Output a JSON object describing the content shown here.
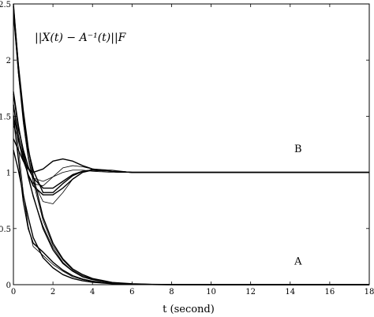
{
  "chart_data": {
    "type": "line",
    "title": "||X(t) − A⁻¹(t)||F",
    "xlabel": "t (second)",
    "ylabel": "",
    "xlim": [
      0,
      18
    ],
    "ylim": [
      0,
      2.5
    ],
    "x_ticks": [
      0,
      2,
      4,
      6,
      8,
      10,
      12,
      14,
      16,
      18
    ],
    "y_ticks": [
      0,
      0.5,
      1,
      1.5,
      2,
      2.5
    ],
    "grid": false,
    "legend": "none",
    "annotations": [
      {
        "text": "B",
        "x": 14.4,
        "y": 1.18
      },
      {
        "text": "A",
        "x": 14.4,
        "y": 0.18
      }
    ],
    "groups": [
      {
        "label": "A",
        "description": "trajectories converging to 0",
        "series": [
          {
            "x": [
              0,
              0.25,
              0.5,
              0.75,
              1,
              1.5,
              2,
              2.5,
              3,
              3.5,
              4,
              5,
              6,
              7,
              8,
              10,
              12,
              14,
              16,
              18
            ],
            "y": [
              2.48,
              1.96,
              1.55,
              1.22,
              0.97,
              0.6,
              0.37,
              0.23,
              0.14,
              0.09,
              0.055,
              0.02,
              0.008,
              0.003,
              0.001,
              0,
              0,
              0,
              0,
              0
            ]
          },
          {
            "x": [
              0,
              0.25,
              0.5,
              0.75,
              1,
              1.5,
              2,
              2.5,
              3,
              3.5,
              4,
              5,
              6,
              7,
              8,
              10,
              12,
              14,
              16,
              18
            ],
            "y": [
              2.4,
              1.88,
              1.48,
              1.16,
              0.92,
              0.57,
              0.35,
              0.22,
              0.13,
              0.08,
              0.05,
              0.02,
              0.007,
              0.003,
              0.001,
              0,
              0,
              0,
              0,
              0
            ]
          },
          {
            "x": [
              0,
              0.25,
              0.5,
              0.75,
              1,
              1.5,
              2,
              2.5,
              3,
              3.5,
              4,
              5,
              6,
              7,
              8,
              10,
              12,
              14,
              16,
              18
            ],
            "y": [
              1.72,
              1.42,
              1.17,
              0.96,
              0.79,
              0.5,
              0.31,
              0.19,
              0.12,
              0.07,
              0.045,
              0.017,
              0.006,
              0.002,
              0.001,
              0,
              0,
              0,
              0,
              0
            ]
          },
          {
            "x": [
              0,
              0.25,
              0.5,
              0.75,
              1,
              1.5,
              2,
              2.5,
              3,
              3.5,
              4,
              5,
              6,
              7,
              8,
              10,
              12,
              14,
              16,
              18
            ],
            "y": [
              1.45,
              1.38,
              1.2,
              0.98,
              0.78,
              0.52,
              0.33,
              0.2,
              0.12,
              0.07,
              0.045,
              0.017,
              0.006,
              0.002,
              0.001,
              0,
              0,
              0,
              0,
              0
            ]
          },
          {
            "x": [
              0,
              0.25,
              0.5,
              0.75,
              1,
              1.5,
              2,
              2.5,
              3,
              3.5,
              4,
              5,
              6,
              7,
              8,
              10,
              12,
              14,
              16,
              18
            ],
            "y": [
              1.5,
              1.12,
              0.74,
              0.5,
              0.37,
              0.29,
              0.2,
              0.13,
              0.08,
              0.05,
              0.03,
              0.011,
              0.004,
              0.001,
              0,
              0,
              0,
              0,
              0,
              0
            ]
          },
          {
            "x": [
              0,
              0.25,
              0.5,
              0.75,
              1,
              1.5,
              2,
              2.5,
              3,
              3.5,
              4,
              5,
              6,
              7,
              8,
              10,
              12,
              14,
              16,
              18
            ],
            "y": [
              1.62,
              1.22,
              0.82,
              0.52,
              0.34,
              0.26,
              0.18,
              0.12,
              0.07,
              0.045,
              0.028,
              0.01,
              0.004,
              0.001,
              0,
              0,
              0,
              0,
              0,
              0
            ]
          },
          {
            "x": [
              0,
              0.25,
              0.5,
              0.75,
              1,
              1.5,
              2,
              2.5,
              3,
              3.5,
              4,
              5,
              6,
              7,
              8,
              10,
              12,
              14,
              16,
              18
            ],
            "y": [
              1.2,
              1.02,
              0.8,
              0.6,
              0.42,
              0.24,
              0.15,
              0.09,
              0.055,
              0.035,
              0.022,
              0.008,
              0.003,
              0.001,
              0,
              0,
              0,
              0,
              0,
              0
            ]
          }
        ]
      },
      {
        "label": "B",
        "description": "trajectories converging to 1",
        "series": [
          {
            "x": [
              0,
              0.25,
              0.5,
              0.75,
              1,
              1.5,
              2,
              2.5,
              3,
              3.5,
              4,
              5,
              6,
              7,
              8,
              10,
              12,
              14,
              16,
              18
            ],
            "y": [
              2.5,
              1.95,
              1.5,
              1.2,
              1.02,
              0.82,
              0.82,
              0.9,
              0.97,
              1.01,
              1.02,
              1.01,
              1.0,
              1.0,
              1.0,
              1.0,
              1.0,
              1.0,
              1.0,
              1.0
            ]
          },
          {
            "x": [
              0,
              0.25,
              0.5,
              0.75,
              1,
              1.5,
              2,
              2.5,
              3,
              3.5,
              4,
              5,
              6,
              7,
              8,
              10,
              12,
              14,
              16,
              18
            ],
            "y": [
              2.42,
              1.88,
              1.44,
              1.12,
              0.92,
              0.74,
              0.72,
              0.82,
              0.94,
              1.0,
              1.03,
              1.02,
              1.0,
              1.0,
              1.0,
              1.0,
              1.0,
              1.0,
              1.0,
              1.0
            ]
          },
          {
            "x": [
              0,
              0.25,
              0.5,
              0.75,
              1,
              1.5,
              2,
              2.5,
              3,
              3.5,
              4,
              5,
              6,
              7,
              8,
              10,
              12,
              14,
              16,
              18
            ],
            "y": [
              1.7,
              1.4,
              1.2,
              1.05,
              0.95,
              0.86,
              0.86,
              0.92,
              0.98,
              1.01,
              1.02,
              1.01,
              1.0,
              1.0,
              1.0,
              1.0,
              1.0,
              1.0,
              1.0,
              1.0
            ]
          },
          {
            "x": [
              0,
              0.25,
              0.5,
              0.75,
              1,
              1.5,
              2,
              2.5,
              3,
              3.5,
              4,
              5,
              6,
              7,
              8,
              10,
              12,
              14,
              16,
              18
            ],
            "y": [
              1.42,
              1.3,
              1.15,
              1.03,
              0.95,
              0.92,
              0.96,
              1.0,
              1.02,
              1.02,
              1.01,
              1.0,
              1.0,
              1.0,
              1.0,
              1.0,
              1.0,
              1.0,
              1.0,
              1.0
            ]
          },
          {
            "x": [
              0,
              0.25,
              0.5,
              0.75,
              1,
              1.5,
              2,
              2.5,
              3,
              3.5,
              4,
              5,
              6,
              7,
              8,
              10,
              12,
              14,
              16,
              18
            ],
            "y": [
              1.3,
              1.2,
              1.1,
              1.03,
              1.0,
              1.03,
              1.1,
              1.12,
              1.1,
              1.06,
              1.03,
              1.01,
              1.0,
              1.0,
              1.0,
              1.0,
              1.0,
              1.0,
              1.0,
              1.0
            ]
          },
          {
            "x": [
              0,
              0.25,
              0.5,
              0.75,
              1,
              1.5,
              2,
              2.5,
              3,
              3.5,
              4,
              5,
              6,
              7,
              8,
              10,
              12,
              14,
              16,
              18
            ],
            "y": [
              1.52,
              1.28,
              1.1,
              0.98,
              0.9,
              0.88,
              0.96,
              1.04,
              1.06,
              1.05,
              1.03,
              1.01,
              1.0,
              1.0,
              1.0,
              1.0,
              1.0,
              1.0,
              1.0,
              1.0
            ]
          },
          {
            "x": [
              0,
              0.25,
              0.5,
              0.75,
              1,
              1.5,
              2,
              2.5,
              3,
              3.5,
              4,
              5,
              6,
              7,
              8,
              10,
              12,
              14,
              16,
              18
            ],
            "y": [
              1.6,
              1.33,
              1.12,
              0.98,
              0.88,
              0.8,
              0.8,
              0.86,
              0.94,
              1.0,
              1.02,
              1.01,
              1.0,
              1.0,
              1.0,
              1.0,
              1.0,
              1.0,
              1.0,
              1.0
            ]
          }
        ]
      }
    ]
  }
}
